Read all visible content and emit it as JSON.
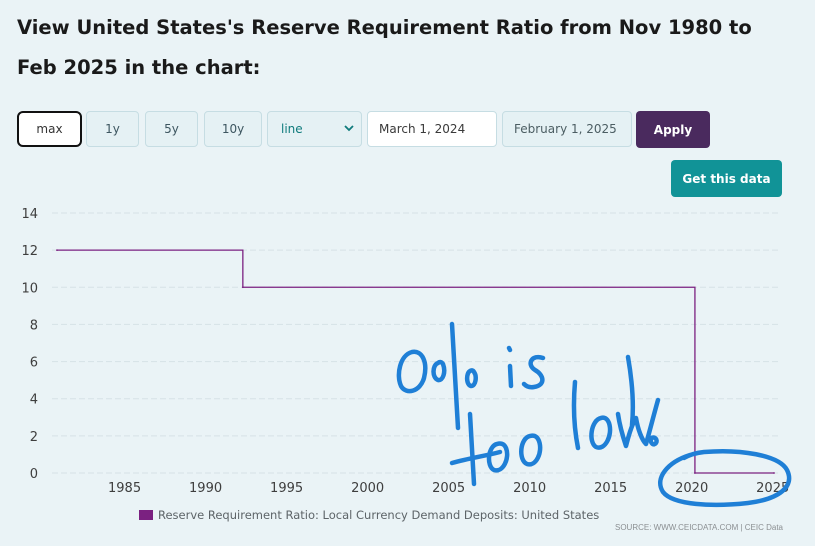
{
  "page": {
    "title": "View United States's Reserve Requirement Ratio from Nov 1980 to Feb 2025 in the chart:"
  },
  "controls": {
    "range_buttons": [
      "max",
      "1y",
      "5y",
      "10y"
    ],
    "active_range": "max",
    "chart_type_select": "line",
    "start_date": "March 1, 2024",
    "end_date": "February 1, 2025",
    "apply_label": "Apply",
    "get_data_label": "Get this data"
  },
  "colors": {
    "series": "#7b2181",
    "apply": "#4a2a5e",
    "get_data": "#119397",
    "annotation": "#1f7fd6"
  },
  "annotation": {
    "text": "0% is too low!"
  },
  "source": "SOURCE: WWW.CEICDATA.COM | CEIC Data",
  "chart_data": {
    "type": "line",
    "title": "",
    "xlabel": "",
    "ylabel": "",
    "xlim": [
      1980.83,
      2025.08
    ],
    "ylim": [
      0,
      14
    ],
    "yticks": [
      0,
      2,
      4,
      6,
      8,
      10,
      12,
      14
    ],
    "xticks": [
      1985,
      1990,
      1995,
      2000,
      2005,
      2010,
      2015,
      2020,
      2025
    ],
    "grid": true,
    "legend": "bottom",
    "step": "post",
    "series": [
      {
        "name": "Reserve Requirement Ratio: Local Currency Demand Deposits: United States",
        "x": [
          1980.83,
          1992.3,
          2020.2,
          2025.08
        ],
        "y": [
          12,
          10,
          0,
          0
        ]
      }
    ]
  }
}
